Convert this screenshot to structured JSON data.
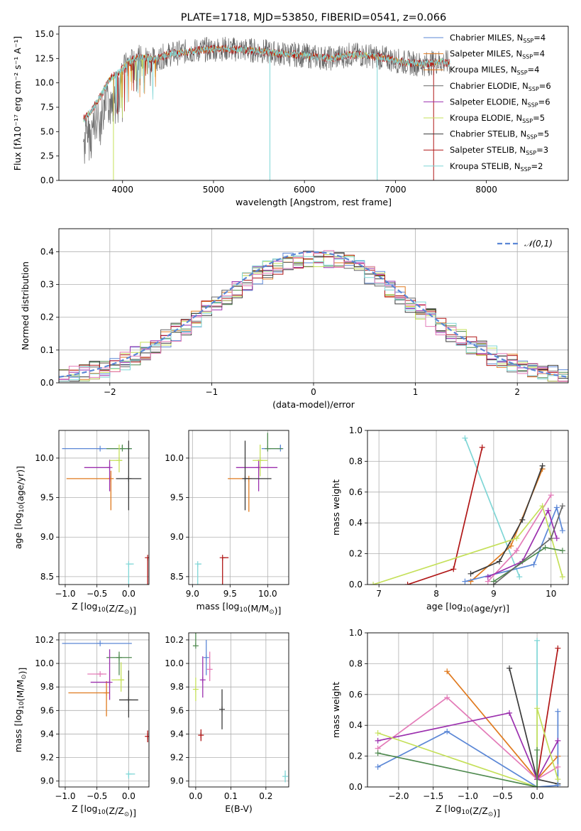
{
  "colors": {
    "chabrier_miles": "#5b87d6",
    "salpeter_miles": "#e07a1f",
    "kroupa_miles": "#4f8a4f",
    "chabrier_elodie": "#666666",
    "salpeter_elodie": "#9b2fae",
    "kroupa_elodie": "#c5e05a",
    "chabrier_stelib": "#3a3a3a",
    "salpeter_stelib": "#b01616",
    "kroupa_stelib": "#7fd6d6",
    "pink": "#e37bb8",
    "normal": "#5b87d6"
  },
  "chart_data": [
    {
      "id": "spectrum",
      "type": "line",
      "title": "PLATE=1718, MJD=53850, FIBERID=0541, z=0.066",
      "xlabel": "wavelength [Angstrom, rest frame]",
      "ylabel": "Flux [fλ10⁻¹⁷ erg cm⁻² s⁻¹ A⁻¹]",
      "xlim": [
        3300,
        8900
      ],
      "ylim": [
        0,
        15.8
      ],
      "xticks": [
        4000,
        5000,
        6000,
        7000,
        8000
      ],
      "yticks": [
        0.0,
        2.5,
        5.0,
        7.5,
        10.0,
        12.5,
        15.0
      ],
      "legend_position": "right",
      "legend": [
        {
          "label": "Chabrier MILES, NSSP=4",
          "name": "Chabrier MILES, N",
          "sub": "SSP",
          "val": "=4",
          "color": "chabrier_miles"
        },
        {
          "label": "Salpeter MILES, NSSP=4",
          "name": "Salpeter MILES, N",
          "sub": "SSP",
          "val": "=4",
          "color": "salpeter_miles"
        },
        {
          "label": "Kroupa MILES, NSSP=4",
          "name": "Kroupa MILES, N",
          "sub": "SSP",
          "val": "=4",
          "color": "salpeter_miles"
        },
        {
          "label": "Chabrier ELODIE, NSSP=6",
          "name": "Chabrier ELODIE, N",
          "sub": "SSP",
          "val": "=6",
          "color": "chabrier_elodie"
        },
        {
          "label": "Salpeter ELODIE, NSSP=6",
          "name": "Salpeter ELODIE, N",
          "sub": "SSP",
          "val": "=6",
          "color": "salpeter_elodie"
        },
        {
          "label": "Kroupa ELODIE, NSSP=5",
          "name": "Kroupa ELODIE, N",
          "sub": "SSP",
          "val": "=5",
          "color": "kroupa_elodie"
        },
        {
          "label": "Chabrier STELIB, NSSP=5",
          "name": "Chabrier STELIB, N",
          "sub": "SSP",
          "val": "=5",
          "color": "chabrier_stelib"
        },
        {
          "label": "Salpeter STELIB, NSSP=3",
          "name": "Salpeter STELIB, N",
          "sub": "SSP",
          "val": "=3",
          "color": "salpeter_stelib"
        },
        {
          "label": "Kroupa STELIB, NSSP=2",
          "name": "Kroupa STELIB, N",
          "sub": "SSP",
          "val": "=2",
          "color": "kroupa_stelib"
        }
      ],
      "continuum": [
        [
          3570,
          6.2
        ],
        [
          3650,
          7.0
        ],
        [
          3750,
          8.5
        ],
        [
          3850,
          10.3
        ],
        [
          3950,
          11.0
        ],
        [
          4050,
          12.0
        ],
        [
          4150,
          12.6
        ],
        [
          4250,
          12.6
        ],
        [
          4350,
          12.4
        ],
        [
          4500,
          12.9
        ],
        [
          4700,
          13.2
        ],
        [
          4900,
          13.4
        ],
        [
          5100,
          13.5
        ],
        [
          5300,
          13.4
        ],
        [
          5500,
          13.3
        ],
        [
          5700,
          13.0
        ],
        [
          5900,
          12.9
        ],
        [
          6100,
          12.7
        ],
        [
          6300,
          12.5
        ],
        [
          6500,
          12.9
        ],
        [
          6700,
          12.8
        ],
        [
          6900,
          12.5
        ],
        [
          7100,
          12.1
        ],
        [
          7300,
          11.9
        ],
        [
          7500,
          12.2
        ],
        [
          7600,
          12.0
        ]
      ],
      "spikes": [
        [
          3900,
          0
        ],
        [
          5620,
          0
        ],
        [
          6800,
          0
        ],
        [
          7420,
          0
        ]
      ]
    },
    {
      "id": "residuals",
      "type": "histogram",
      "xlabel": "(data-model)/error",
      "ylabel": "Normed distribution",
      "xlim": [
        -2.5,
        2.5
      ],
      "ylim": [
        0,
        0.47
      ],
      "xticks": [
        -2,
        -1,
        0,
        1,
        2
      ],
      "yticks": [
        0.0,
        0.1,
        0.2,
        0.3,
        0.4
      ],
      "grid": true,
      "legend_position": "top-right",
      "legend": [
        {
          "label": "𝒩(0,1)",
          "color": "normal"
        }
      ],
      "bin_width": 0.1,
      "bins_from": -2.5
    },
    {
      "id": "age-vs-Z",
      "type": "errorbar",
      "xlabel": "Z [log10(Z/Z⊙)]",
      "ylabel": "age  [log10(age/yr)]",
      "xlim": [
        -1.1,
        0.32
      ],
      "ylim": [
        8.4,
        10.35
      ],
      "xticks": [
        -1.0,
        -0.5,
        0.0
      ],
      "yticks": [
        8.5,
        9.0,
        9.5,
        10.0
      ],
      "grid": true,
      "points": [
        {
          "x": -0.45,
          "y": 10.12,
          "xerr": [
            0.6,
            0.5
          ],
          "yerr": [
            0.0,
            0.0
          ],
          "color": "chabrier_miles"
        },
        {
          "x": -0.28,
          "y": 9.74,
          "xerr": [
            0.7,
            0.0
          ],
          "yerr": [
            0.1,
            0.4
          ],
          "color": "salpeter_miles"
        },
        {
          "x": -0.1,
          "y": 10.12,
          "xerr": [
            0.25,
            0.15
          ],
          "yerr": [
            0.05,
            0.0
          ],
          "color": "kroupa_miles"
        },
        {
          "x": -0.3,
          "y": 9.88,
          "xerr": [
            0.4,
            0.0
          ],
          "yerr": [
            0.1,
            0.3
          ],
          "color": "salpeter_elodie"
        },
        {
          "x": -0.15,
          "y": 9.97,
          "xerr": [
            0.15,
            0.05
          ],
          "yerr": [
            0.2,
            0.15
          ],
          "color": "kroupa_elodie"
        },
        {
          "x": 0.0,
          "y": 9.74,
          "xerr": [
            0.2,
            0.2
          ],
          "yerr": [
            0.48,
            0.4
          ],
          "color": "chabrier_stelib"
        },
        {
          "x": 0.3,
          "y": 8.74,
          "xerr": [
            0.0,
            0.0
          ],
          "yerr": [
            0.0,
            0.72
          ],
          "color": "salpeter_stelib"
        },
        {
          "x": 0.0,
          "y": 8.66,
          "xerr": [
            0.0,
            0.08
          ],
          "yerr": [
            0.0,
            0.94
          ],
          "color": "kroupa_stelib"
        }
      ]
    },
    {
      "id": "age-vs-mass",
      "type": "errorbar",
      "xlabel": "mass [log10(M/M⊙)]",
      "xlim": [
        8.95,
        10.28
      ],
      "ylim": [
        8.4,
        10.35
      ],
      "xticks": [
        9.0,
        9.5,
        10.0
      ],
      "yticks": [
        8.5,
        9.0,
        9.5,
        10.0
      ],
      "grid": true,
      "points": [
        {
          "x": 10.17,
          "y": 10.12,
          "xerr": [
            0.25,
            0.0
          ],
          "yerr": [
            0.05,
            0.0
          ],
          "color": "chabrier_miles"
        },
        {
          "x": 9.75,
          "y": 9.74,
          "xerr": [
            0.28,
            0.0
          ],
          "yerr": [
            0.0,
            0.42
          ],
          "color": "salpeter_miles"
        },
        {
          "x": 10.0,
          "y": 10.12,
          "xerr": [
            0.0,
            0.2
          ],
          "yerr": [
            0.2,
            0.0
          ],
          "color": "kroupa_miles"
        },
        {
          "x": 9.88,
          "y": 9.88,
          "xerr": [
            0.3,
            0.25
          ],
          "yerr": [
            0.1,
            0.3
          ],
          "color": "salpeter_elodie"
        },
        {
          "x": 9.9,
          "y": 9.97,
          "xerr": [
            0.1,
            0.1
          ],
          "yerr": [
            0.2,
            0.2
          ],
          "color": "kroupa_elodie"
        },
        {
          "x": 9.7,
          "y": 9.74,
          "xerr": [
            0.0,
            0.35
          ],
          "yerr": [
            0.48,
            0.4
          ],
          "color": "chabrier_stelib"
        },
        {
          "x": 9.4,
          "y": 8.74,
          "xerr": [
            0.0,
            0.08
          ],
          "yerr": [
            0.0,
            0.72
          ],
          "color": "salpeter_stelib"
        },
        {
          "x": 9.07,
          "y": 8.66,
          "xerr": [
            0.0,
            0.05
          ],
          "yerr": [
            0.0,
            0.94
          ],
          "color": "kroupa_stelib"
        }
      ]
    },
    {
      "id": "weight-vs-age",
      "type": "line",
      "xlabel": "age  [log10(age/yr)]",
      "ylabel": "mass weight",
      "xlim": [
        6.8,
        10.3
      ],
      "ylim": [
        0,
        1.0
      ],
      "xticks": [
        7,
        8,
        9,
        10
      ],
      "yticks": [
        0.0,
        0.2,
        0.4,
        0.6,
        0.8,
        1.0
      ],
      "grid": true,
      "series": [
        {
          "color": "kroupa_stelib",
          "x": [
            8.5,
            9.45
          ],
          "y": [
            0.95,
            0.05
          ]
        },
        {
          "color": "salpeter_stelib",
          "x": [
            7.5,
            8.3,
            8.8
          ],
          "y": [
            0.0,
            0.1,
            0.89
          ]
        },
        {
          "color": "salpeter_miles",
          "x": [
            8.6,
            9.3,
            9.85
          ],
          "y": [
            0.02,
            0.25,
            0.75
          ]
        },
        {
          "color": "chabrier_stelib",
          "x": [
            8.6,
            9.1,
            9.5,
            9.85
          ],
          "y": [
            0.07,
            0.15,
            0.42,
            0.77
          ]
        },
        {
          "color": "chabrier_miles",
          "x": [
            8.5,
            9.7,
            10.1,
            10.2
          ],
          "y": [
            0.02,
            0.13,
            0.5,
            0.35
          ]
        },
        {
          "color": "pink",
          "x": [
            8.9,
            9.4,
            10.0
          ],
          "y": [
            0.02,
            0.22,
            0.58
          ]
        },
        {
          "color": "salpeter_elodie",
          "x": [
            8.9,
            9.5,
            9.95,
            10.1
          ],
          "y": [
            0.05,
            0.15,
            0.48,
            0.3
          ]
        },
        {
          "color": "kroupa_elodie",
          "x": [
            6.9,
            9.4,
            9.85,
            10.2
          ],
          "y": [
            0.0,
            0.3,
            0.51,
            0.05
          ]
        },
        {
          "color": "kroupa_miles",
          "x": [
            9.0,
            9.9,
            10.2
          ],
          "y": [
            0.02,
            0.24,
            0.22
          ]
        },
        {
          "color": "chabrier_elodie",
          "x": [
            9.0,
            10.0,
            10.2
          ],
          "y": [
            0.0,
            0.3,
            0.51
          ]
        }
      ]
    },
    {
      "id": "mass-vs-Z",
      "type": "errorbar",
      "xlabel": "Z [log10(Z/Z⊙)]",
      "ylabel": "mass [log10(M/M⊙)]",
      "xlim": [
        -1.1,
        0.32
      ],
      "ylim": [
        8.95,
        10.26
      ],
      "xticks": [
        -1.0,
        -0.5,
        0.0
      ],
      "yticks": [
        9.0,
        9.2,
        9.4,
        9.6,
        9.8,
        10.0,
        10.2
      ],
      "grid": true,
      "points": [
        {
          "x": -0.45,
          "y": 10.17,
          "xerr": [
            0.6,
            0.5
          ],
          "yerr": [
            0.0,
            0.0
          ],
          "color": "chabrier_miles"
        },
        {
          "x": -0.35,
          "y": 9.75,
          "xerr": [
            0.6,
            0.0
          ],
          "yerr": [
            0.1,
            0.2
          ],
          "color": "salpeter_miles"
        },
        {
          "x": -0.15,
          "y": 10.05,
          "xerr": [
            0.2,
            0.2
          ],
          "yerr": [
            0.05,
            0.15
          ],
          "color": "kroupa_miles"
        },
        {
          "x": -0.3,
          "y": 9.84,
          "xerr": [
            0.3,
            0.0
          ],
          "yerr": [
            0.28,
            0.15
          ],
          "color": "salpeter_elodie"
        },
        {
          "x": -0.12,
          "y": 9.86,
          "xerr": [
            0.15,
            0.05
          ],
          "yerr": [
            0.15,
            0.1
          ],
          "color": "kroupa_elodie"
        },
        {
          "x": -0.45,
          "y": 9.91,
          "xerr": [
            0.2,
            0.1
          ],
          "yerr": [
            0.0,
            0.0
          ],
          "color": "pink"
        },
        {
          "x": 0.0,
          "y": 9.69,
          "xerr": [
            0.15,
            0.15
          ],
          "yerr": [
            0.25,
            0.15
          ],
          "color": "chabrier_stelib"
        },
        {
          "x": 0.3,
          "y": 9.38,
          "xerr": [
            0.0,
            0.0
          ],
          "yerr": [
            0.05,
            0.05
          ],
          "color": "salpeter_stelib"
        },
        {
          "x": 0.0,
          "y": 9.06,
          "xerr": [
            0.0,
            0.1
          ],
          "yerr": [
            0.0,
            0.04
          ],
          "color": "kroupa_stelib"
        }
      ]
    },
    {
      "id": "mass-vs-ebv",
      "type": "errorbar",
      "xlabel": "E(B-V)",
      "xlim": [
        -0.02,
        0.265
      ],
      "ylim": [
        8.95,
        10.26
      ],
      "xticks": [
        0.0,
        0.1,
        0.2
      ],
      "yticks": [
        9.0,
        9.2,
        9.4,
        9.6,
        9.8,
        10.0,
        10.2
      ],
      "grid": true,
      "points": [
        {
          "x": 0.03,
          "y": 10.05,
          "xerr": [
            0.0,
            0.0
          ],
          "yerr": [
            0.15,
            0.15
          ],
          "color": "chabrier_miles"
        },
        {
          "x": 0.0,
          "y": 9.78,
          "xerr": [
            0.0,
            0.0
          ],
          "yerr": [
            0.1,
            0.1
          ],
          "color": "kroupa_elodie"
        },
        {
          "x": 0.0,
          "y": 10.15,
          "xerr": [
            0.0,
            0.0
          ],
          "yerr": [
            0.12,
            0.0
          ],
          "color": "kroupa_miles"
        },
        {
          "x": 0.04,
          "y": 9.95,
          "xerr": [
            0.0,
            0.0
          ],
          "yerr": [
            0.15,
            0.1
          ],
          "color": "pink"
        },
        {
          "x": 0.02,
          "y": 9.86,
          "xerr": [
            0.0,
            0.0
          ],
          "yerr": [
            0.2,
            0.15
          ],
          "color": "salpeter_elodie"
        },
        {
          "x": 0.075,
          "y": 9.61,
          "xerr": [
            0.0,
            0.0
          ],
          "yerr": [
            0.17,
            0.17
          ],
          "color": "chabrier_stelib"
        },
        {
          "x": 0.015,
          "y": 9.39,
          "xerr": [
            0.0,
            0.0
          ],
          "yerr": [
            0.05,
            0.05
          ],
          "color": "salpeter_stelib"
        },
        {
          "x": 0.255,
          "y": 9.04,
          "xerr": [
            0.0,
            0.0
          ],
          "yerr": [
            0.05,
            0.05
          ],
          "color": "kroupa_stelib"
        }
      ]
    },
    {
      "id": "weight-vs-Z",
      "type": "line",
      "xlabel": "Z [log10(Z/Z⊙)]",
      "ylabel": "mass weight",
      "xlim": [
        -2.45,
        0.45
      ],
      "ylim": [
        0,
        1.0
      ],
      "xticks": [
        -2.0,
        -1.5,
        -1.0,
        -0.5,
        0.0
      ],
      "yticks": [
        0.0,
        0.2,
        0.4,
        0.6,
        0.8,
        1.0
      ],
      "grid": true,
      "series": [
        {
          "color": "kroupa_stelib",
          "x": [
            0.0,
            0.0
          ],
          "y": [
            0.95,
            0.05
          ]
        },
        {
          "color": "salpeter_stelib",
          "x": [
            0.0,
            0.3
          ],
          "y": [
            0.05,
            0.9
          ]
        },
        {
          "color": "salpeter_miles",
          "x": [
            -1.3,
            0.0,
            0.3
          ],
          "y": [
            0.75,
            0.05,
            0.2
          ]
        },
        {
          "color": "chabrier_stelib",
          "x": [
            -0.4,
            0.0,
            0.3
          ],
          "y": [
            0.77,
            0.05,
            0.02
          ]
        },
        {
          "color": "chabrier_miles",
          "x": [
            -2.3,
            -1.3,
            0.0,
            0.3,
            0.3
          ],
          "y": [
            0.13,
            0.36,
            0.0,
            0.01,
            0.49
          ]
        },
        {
          "color": "pink",
          "x": [
            -2.3,
            -1.3,
            0.0,
            0.3
          ],
          "y": [
            0.25,
            0.58,
            0.05,
            0.13
          ]
        },
        {
          "color": "salpeter_elodie",
          "x": [
            -2.3,
            -0.4,
            0.0,
            0.3
          ],
          "y": [
            0.3,
            0.48,
            0.05,
            0.3
          ]
        },
        {
          "color": "kroupa_elodie",
          "x": [
            -2.3,
            0.0,
            0.0,
            0.3
          ],
          "y": [
            0.35,
            0.0,
            0.51,
            0.05
          ]
        },
        {
          "color": "kroupa_miles",
          "x": [
            -2.3,
            0.0,
            0.0
          ],
          "y": [
            0.22,
            0.0,
            0.24
          ]
        }
      ]
    }
  ]
}
